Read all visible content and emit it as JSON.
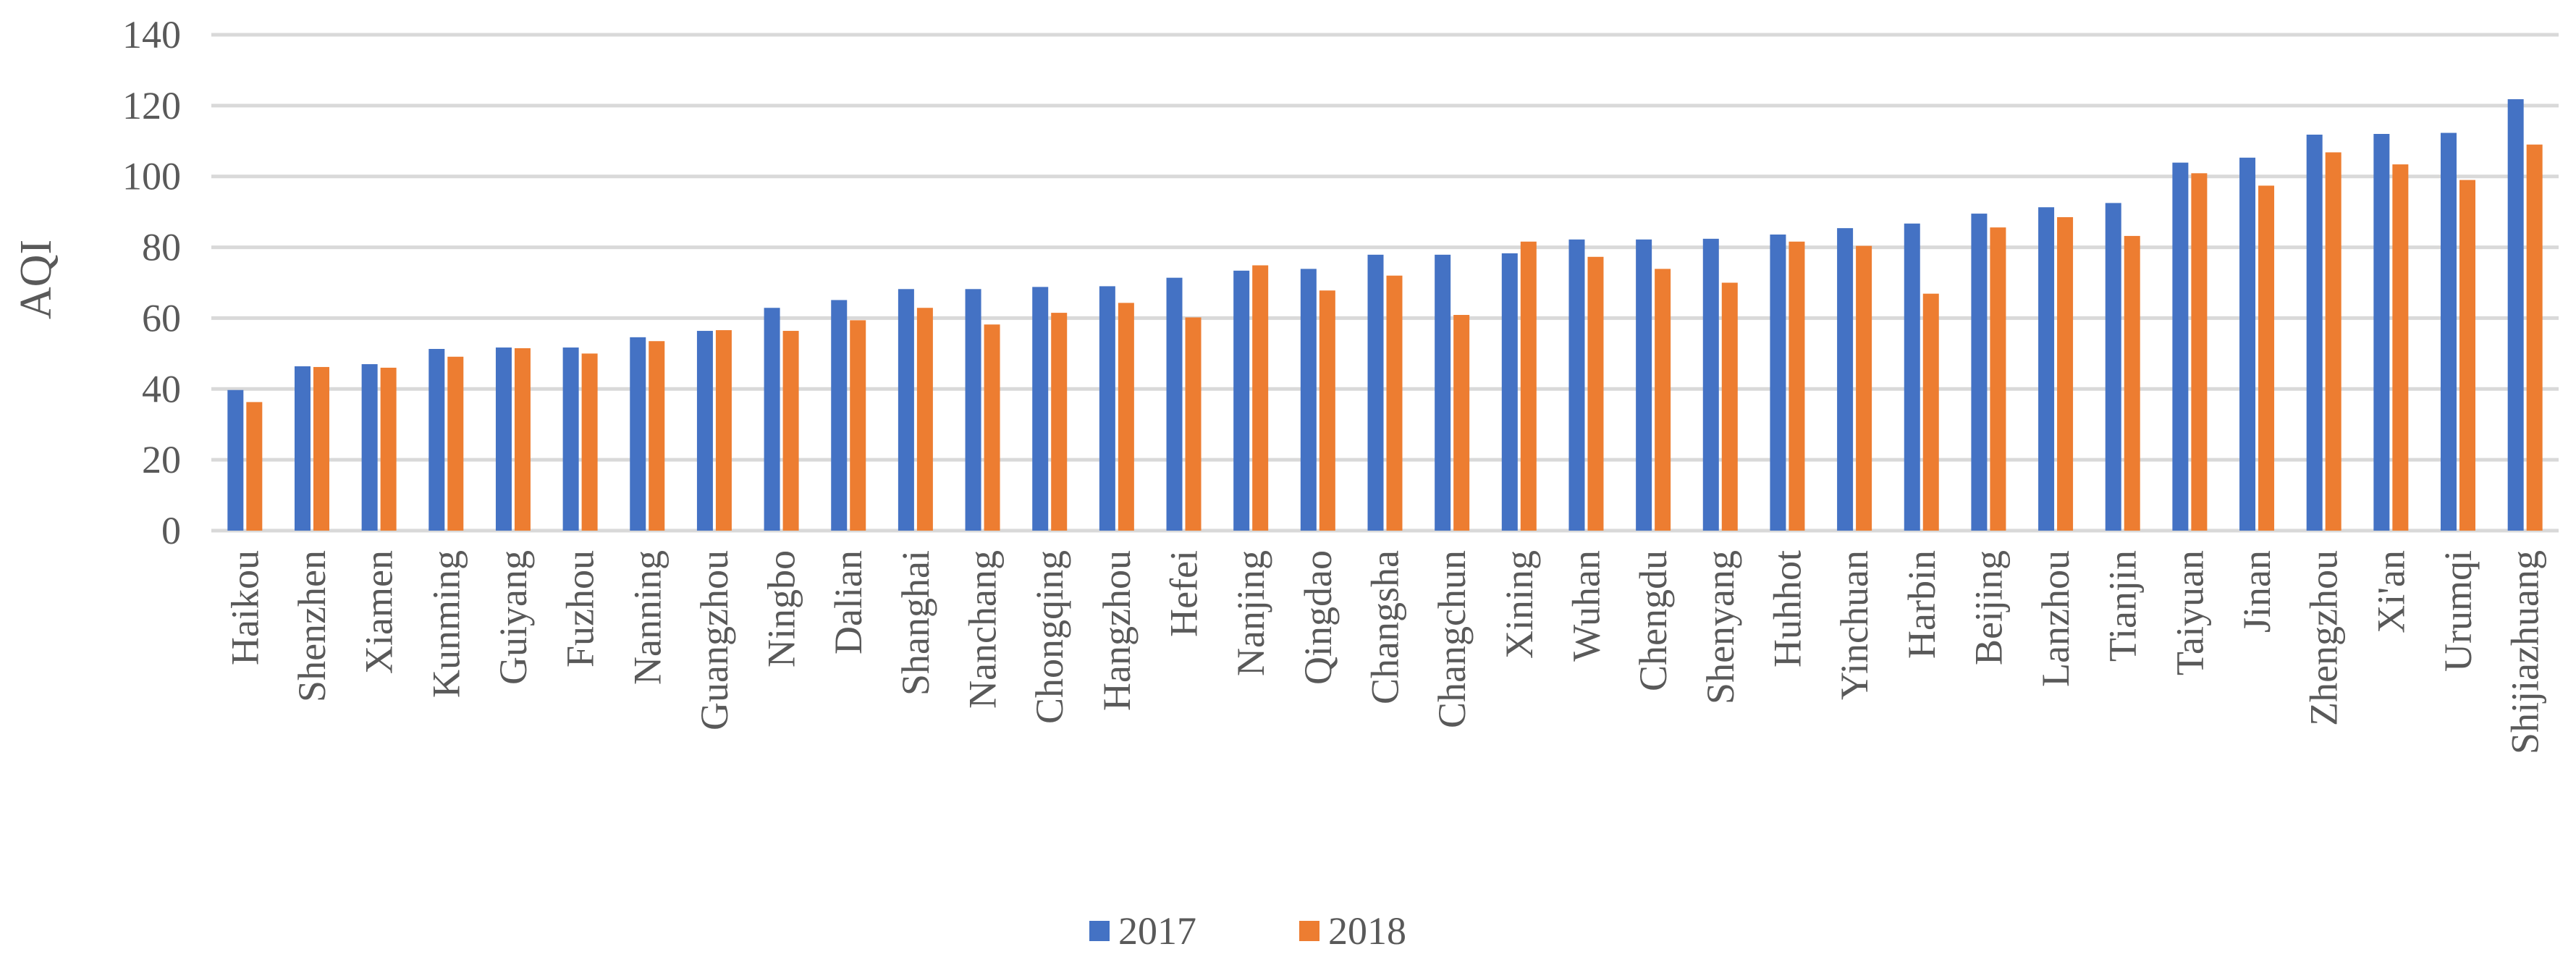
{
  "chart_data": {
    "type": "bar",
    "title": "",
    "xlabel": "",
    "ylabel": "AQI",
    "ylim": [
      0,
      140
    ],
    "yticks": [
      "0",
      "20",
      "40",
      "60",
      "80",
      "100",
      "120",
      "140"
    ],
    "grid": true,
    "legend_position": "bottom",
    "categories": [
      "Haikou",
      "Shenzhen",
      "Xiamen",
      "Kunming",
      "Guiyang",
      "Fuzhou",
      "Nanning",
      "Guangzhou",
      "Ningbo",
      "Dalian",
      "Shanghai",
      "Nanchang",
      "Chongqing",
      "Hangzhou",
      "Hefei",
      "Nanjing",
      "Qingdao",
      "Changsha",
      "Changchun",
      "Xining",
      "Wuhan",
      "Chengdu",
      "Shenyang",
      "Huhhot",
      "Yinchuan",
      "Harbin",
      "Beijing",
      "Lanzhou",
      "Tianjin",
      "Taiyuan",
      "Jinan",
      "Zhengzhou",
      "Xi'an",
      "Urumqi",
      "Shijiazhuang"
    ],
    "series": [
      {
        "name": "2017",
        "color": "#4472C4",
        "values": [
          39.7,
          46.4,
          47.0,
          51.3,
          51.7,
          51.7,
          54.6,
          56.4,
          62.9,
          65.1,
          68.2,
          68.2,
          68.8,
          69.0,
          71.4,
          73.4,
          73.9,
          77.9,
          77.9,
          78.3,
          82.2,
          82.2,
          82.4,
          83.6,
          85.4,
          86.7,
          89.5,
          91.3,
          92.5,
          103.9,
          105.3,
          111.8,
          112.0,
          112.3,
          121.8
        ]
      },
      {
        "name": "2018",
        "color": "#ED7D31",
        "values": [
          36.3,
          46.2,
          46.0,
          49.1,
          51.5,
          50.0,
          53.5,
          56.6,
          56.4,
          59.4,
          62.9,
          58.2,
          61.5,
          64.3,
          60.2,
          74.9,
          67.8,
          72.0,
          60.9,
          81.6,
          77.3,
          73.9,
          70.0,
          81.6,
          80.4,
          66.9,
          85.6,
          88.5,
          83.2,
          100.9,
          97.4,
          106.8,
          103.4,
          99.0,
          109.0
        ]
      }
    ]
  }
}
